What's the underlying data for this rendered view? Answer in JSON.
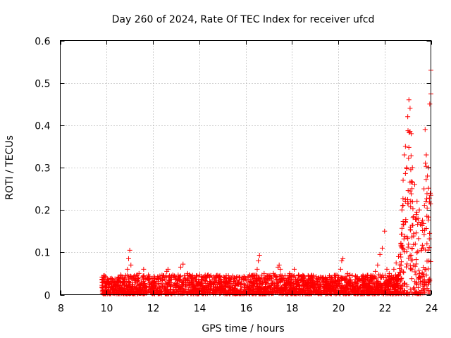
{
  "chart_data": {
    "type": "scatter",
    "title": "Day 260 of 2024, Rate Of TEC Index for receiver ufcd",
    "xlabel": "GPS time / hours",
    "ylabel": "ROTI / TECUs",
    "xlim": [
      8,
      24
    ],
    "ylim": [
      0,
      0.6
    ],
    "xticks": [
      "8",
      "10",
      "12",
      "14",
      "16",
      "18",
      "20",
      "22",
      "24"
    ],
    "yticks": [
      "0",
      "0.1",
      "0.2",
      "0.3",
      "0.4",
      "0.5",
      "0.6"
    ],
    "grid": true,
    "marker": "plus",
    "series_color": "#ff0000",
    "series": [
      {
        "name": "ROTI",
        "x": [
          9.8,
          9.9,
          10.0,
          10.1,
          10.3,
          10.5,
          10.7,
          10.9,
          10.95,
          11.0,
          11.05,
          11.2,
          11.4,
          11.6,
          11.8,
          12.0,
          12.2,
          12.4,
          12.6,
          12.65,
          12.8,
          13.0,
          13.2,
          13.3,
          13.5,
          13.7,
          13.9,
          14.1,
          14.3,
          14.5,
          14.7,
          14.9,
          15.1,
          15.3,
          15.5,
          15.7,
          15.9,
          16.1,
          16.3,
          16.5,
          16.55,
          16.6,
          16.8,
          17.0,
          17.2,
          17.4,
          17.45,
          17.5,
          17.7,
          17.9,
          18.1,
          18.3,
          18.5,
          18.7,
          18.9,
          19.1,
          19.3,
          19.5,
          19.7,
          19.9,
          20.1,
          20.15,
          20.2,
          20.4,
          20.6,
          20.8,
          21.0,
          21.2,
          21.4,
          21.6,
          21.7,
          21.8,
          21.9,
          22.0,
          22.1,
          22.2,
          22.3,
          22.4,
          22.5,
          22.6,
          22.7,
          22.75,
          22.8,
          22.85,
          22.9,
          22.95,
          23.0,
          23.05,
          23.1,
          23.15,
          23.2,
          23.3,
          23.4,
          23.5,
          23.6,
          23.7,
          23.75,
          23.8,
          23.85,
          23.9,
          23.95,
          24.0
        ],
        "y": [
          0.035,
          0.045,
          0.03,
          0.025,
          0.03,
          0.035,
          0.04,
          0.06,
          0.085,
          0.105,
          0.07,
          0.045,
          0.05,
          0.06,
          0.035,
          0.03,
          0.04,
          0.035,
          0.055,
          0.06,
          0.04,
          0.035,
          0.065,
          0.072,
          0.05,
          0.04,
          0.045,
          0.035,
          0.04,
          0.045,
          0.04,
          0.035,
          0.04,
          0.038,
          0.035,
          0.03,
          0.035,
          0.04,
          0.045,
          0.06,
          0.08,
          0.093,
          0.05,
          0.045,
          0.05,
          0.065,
          0.07,
          0.06,
          0.045,
          0.05,
          0.06,
          0.045,
          0.04,
          0.045,
          0.04,
          0.035,
          0.04,
          0.035,
          0.04,
          0.045,
          0.06,
          0.08,
          0.085,
          0.05,
          0.045,
          0.04,
          0.035,
          0.04,
          0.045,
          0.055,
          0.07,
          0.095,
          0.11,
          0.15,
          0.06,
          0.05,
          0.045,
          0.06,
          0.075,
          0.09,
          0.12,
          0.2,
          0.27,
          0.33,
          0.35,
          0.3,
          0.42,
          0.46,
          0.44,
          0.38,
          0.3,
          0.26,
          0.22,
          0.2,
          0.17,
          0.25,
          0.39,
          0.33,
          0.28,
          0.3,
          0.45,
          0.53
        ]
      }
    ]
  }
}
